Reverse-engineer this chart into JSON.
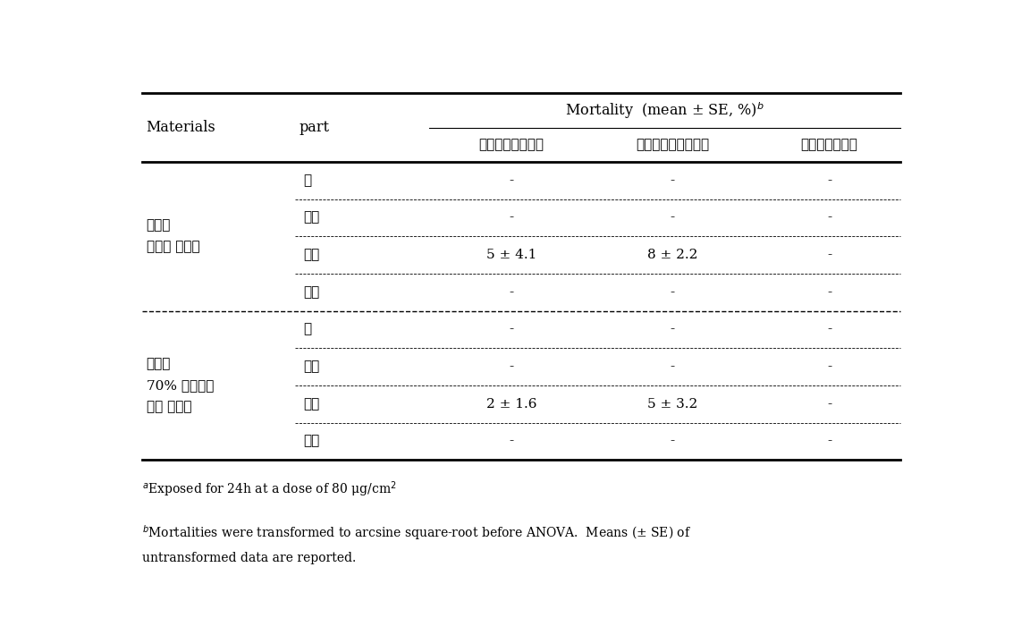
{
  "col_headers": [
    "Materials",
    "part",
    "켈다리먹지진드기",
    "세로무니먹지진드기",
    "저장식품진드기"
  ],
  "group1_label": "뭑나무\n메탄올 추출물",
  "group2_label": "뭑나무\n70% 에타노올\n열당 추출물",
  "parts": [
    "잎",
    "줄기",
    "빌리",
    "열매"
  ],
  "group1_data": [
    [
      "-",
      "-",
      "-"
    ],
    [
      "-",
      "-",
      "-"
    ],
    [
      "5 ± 4.1",
      "8 ± 2.2",
      "-"
    ],
    [
      "-",
      "-",
      "-"
    ]
  ],
  "group2_data": [
    [
      "-",
      "-",
      "-"
    ],
    [
      "-",
      "-",
      "-"
    ],
    [
      "2 ± 1.6",
      "5 ± 3.2",
      "-"
    ],
    [
      "-",
      "-",
      "-"
    ]
  ],
  "bg_color": "white",
  "text_color": "black",
  "font_size": 11,
  "font_size_header": 11.5
}
